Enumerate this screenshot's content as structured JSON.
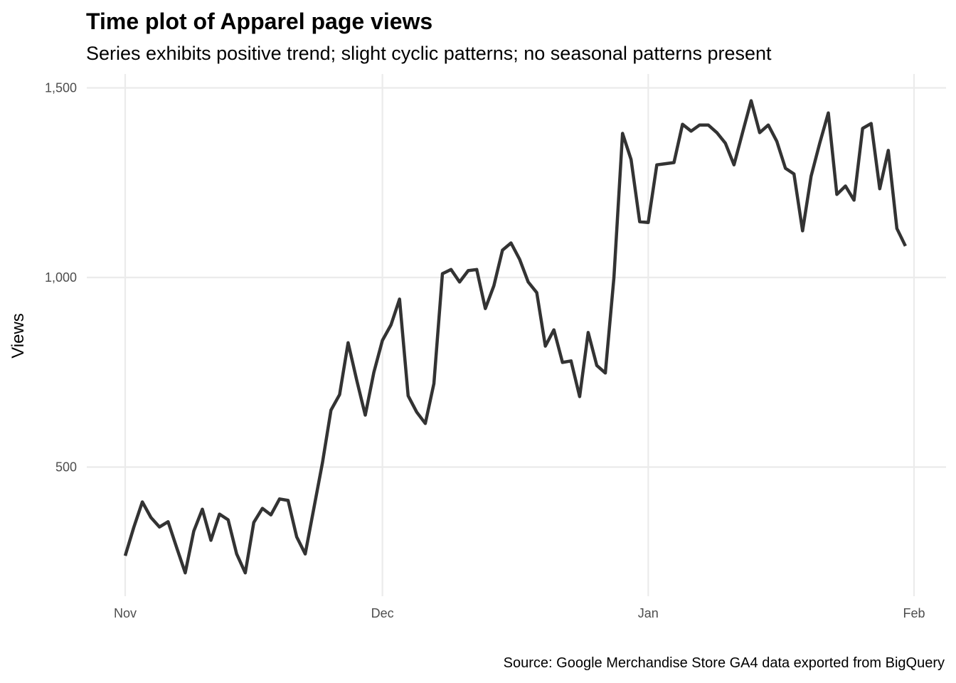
{
  "chart_data": {
    "type": "line",
    "title": "Time plot of Apparel page views",
    "subtitle": "Series exhibits positive trend; slight cyclic patterns; no seasonal patterns present",
    "caption": "Source: Google Merchandise Store GA4 data exported from BigQuery",
    "xlabel": "",
    "ylabel": "Views",
    "x_start": "Nov 1",
    "x_step": "1 day",
    "x_ticks": [
      {
        "label": "Nov",
        "day": 0
      },
      {
        "label": "Dec",
        "day": 30
      },
      {
        "label": "Jan",
        "day": 61
      },
      {
        "label": "Feb",
        "day": 92
      }
    ],
    "y_ticks": [
      {
        "label": "500",
        "value": 500
      },
      {
        "label": "1,000",
        "value": 1000
      },
      {
        "label": "1,500",
        "value": 1500
      }
    ],
    "ylim": [
      200,
      1540
    ],
    "xlim": [
      -4.5,
      95.5
    ],
    "grid": true,
    "line_color": "#333333",
    "series": [
      {
        "name": "Views",
        "values": [
          266,
          341,
          408,
          367,
          342,
          356,
          288,
          221,
          331,
          389,
          307,
          376,
          361,
          271,
          221,
          354,
          391,
          374,
          416,
          412,
          316,
          271,
          391,
          511,
          650,
          691,
          828,
          729,
          637,
          750,
          834,
          875,
          943,
          688,
          645,
          615,
          720,
          1010,
          1021,
          988,
          1018,
          1021,
          918,
          978,
          1072,
          1091,
          1048,
          988,
          960,
          819,
          862,
          776,
          780,
          686,
          855,
          768,
          748,
          1000,
          1380,
          1311,
          1147,
          1145,
          1297,
          1300,
          1303,
          1404,
          1386,
          1402,
          1402,
          1382,
          1354,
          1297,
          1382,
          1466,
          1382,
          1402,
          1359,
          1288,
          1273,
          1123,
          1267,
          1354,
          1434,
          1219,
          1241,
          1204,
          1393,
          1406,
          1234,
          1335,
          1129,
          1083
        ]
      }
    ]
  }
}
